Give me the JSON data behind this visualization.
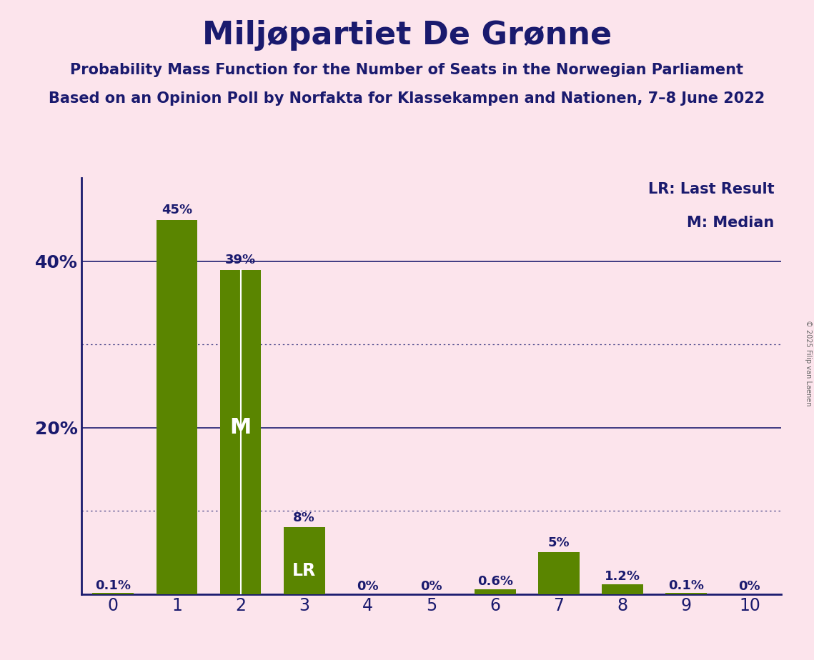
{
  "title": "Miljøpartiet De Grønne",
  "subtitle1": "Probability Mass Function for the Number of Seats in the Norwegian Parliament",
  "subtitle2": "Based on an Opinion Poll by Norfakta for Klassekampen and Nationen, 7–8 June 2022",
  "copyright": "© 2025 Filip van Laenen",
  "categories": [
    0,
    1,
    2,
    3,
    4,
    5,
    6,
    7,
    8,
    9,
    10
  ],
  "values": [
    0.1,
    45,
    39,
    8,
    0,
    0,
    0.6,
    5,
    1.2,
    0.1,
    0
  ],
  "bar_color": "#5a8500",
  "background_color": "#fce4ec",
  "title_color": "#1a1a6e",
  "label_color": "#1a1a6e",
  "median_bar": 2,
  "lr_bar": 3,
  "labels": [
    "0.1%",
    "45%",
    "39%",
    "8%",
    "0%",
    "0%",
    "0.6%",
    "5%",
    "1.2%",
    "0.1%",
    "0%"
  ],
  "ytick_solid": [
    20,
    40
  ],
  "ytick_dotted": [
    10,
    30
  ],
  "ytick_labels_pos": [
    20,
    40
  ],
  "ytick_labels_text": [
    "20%",
    "40%"
  ],
  "ymax": 50,
  "lr_legend": "LR: Last Result",
  "m_legend": "M: Median",
  "bar_width": 0.65
}
